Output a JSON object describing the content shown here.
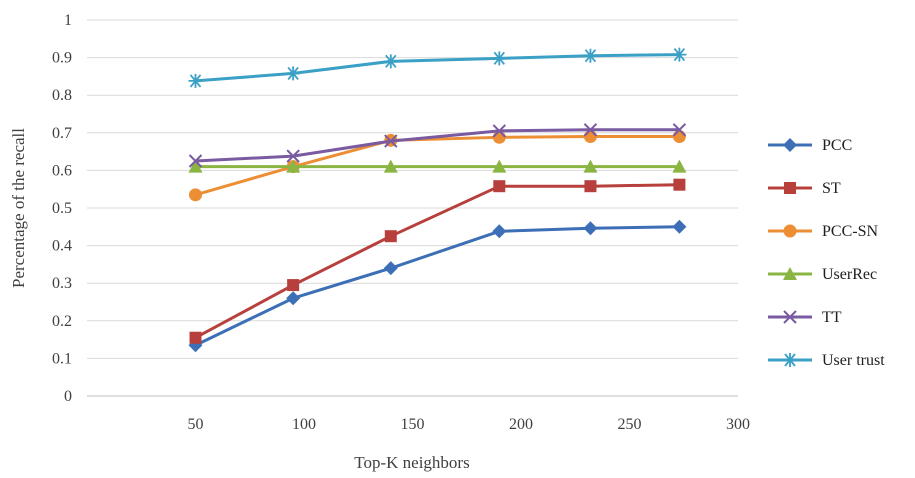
{
  "chart_data": {
    "type": "line",
    "xlabel": "Top-K neighbors",
    "ylabel": "Percentage of the recall",
    "xlim": [
      0,
      300
    ],
    "ylim": [
      0,
      1
    ],
    "x_ticks": [
      50,
      100,
      150,
      200,
      250,
      300
    ],
    "y_ticks": [
      0,
      0.1,
      0.2,
      0.3,
      0.4,
      0.5,
      0.6,
      0.7,
      0.8,
      0.9,
      1
    ],
    "grid": "horizontal",
    "legend": "right",
    "x": [
      50,
      95,
      140,
      190,
      232,
      273
    ],
    "series": [
      {
        "name": "PCC",
        "color": "#3d6fb6",
        "marker": "diamond",
        "values": [
          0.135,
          0.26,
          0.34,
          0.438,
          0.446,
          0.45
        ]
      },
      {
        "name": "ST",
        "color": "#b8403c",
        "marker": "square",
        "values": [
          0.155,
          0.295,
          0.425,
          0.558,
          0.558,
          0.562
        ]
      },
      {
        "name": "PCC-SN",
        "color": "#ec8e34",
        "marker": "circle",
        "values": [
          0.535,
          0.61,
          0.68,
          0.688,
          0.69,
          0.69
        ]
      },
      {
        "name": "UserRec",
        "color": "#8ab543",
        "marker": "triangle",
        "values": [
          0.61,
          0.61,
          0.61,
          0.61,
          0.61,
          0.61
        ]
      },
      {
        "name": "TT",
        "color": "#7a5aa0",
        "marker": "x",
        "values": [
          0.625,
          0.638,
          0.678,
          0.705,
          0.708,
          0.708
        ]
      },
      {
        "name": "User trust",
        "color": "#3aa0c6",
        "marker": "asterisk",
        "values": [
          0.838,
          0.858,
          0.89,
          0.898,
          0.905,
          0.908
        ]
      }
    ]
  }
}
